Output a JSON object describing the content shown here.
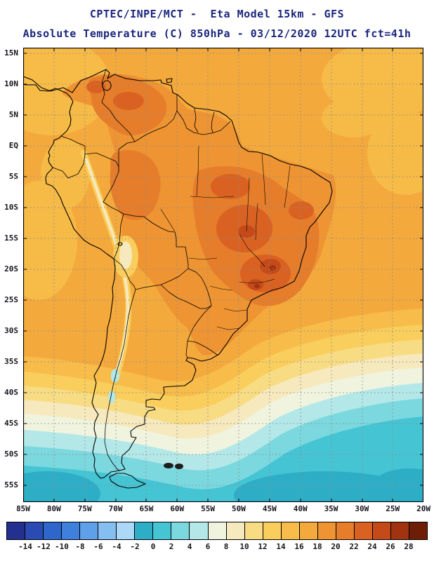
{
  "title": {
    "line1": "CPTEC/INPE/MCT -  Eta Model 15km - GFS",
    "line2": "Absolute Temperature (C) 850hPa - 03/12/2020 12UTC fct=41h"
  },
  "map": {
    "lat_labels": [
      "15N",
      "10N",
      "5N",
      "EQ",
      "5S",
      "10S",
      "15S",
      "20S",
      "25S",
      "30S",
      "35S",
      "40S",
      "45S",
      "50S",
      "55S"
    ],
    "lon_labels": [
      "85W",
      "80W",
      "75W",
      "70W",
      "65W",
      "60W",
      "55W",
      "50W",
      "45W",
      "40W",
      "35W",
      "30W",
      "25W",
      "20W"
    ]
  },
  "colorbar": {
    "tick_values": [
      "-14",
      "-12",
      "-10",
      "-8",
      "-6",
      "-4",
      "-2",
      "0",
      "2",
      "4",
      "6",
      "8",
      "10",
      "12",
      "14",
      "16",
      "18",
      "20",
      "22",
      "24",
      "26",
      "28"
    ],
    "cell_colors": [
      "#23308F",
      "#2A4BB4",
      "#2F66CC",
      "#3F80DC",
      "#60A0E8",
      "#85BEF0",
      "#ABD8F6",
      "#2EAEC6",
      "#45C4D4",
      "#7BD8DF",
      "#B4E8E8",
      "#F0F4DF",
      "#F6E9BE",
      "#F8DC84",
      "#F9CE5C",
      "#F7BC49",
      "#F4A93C",
      "#EE9433",
      "#E57D2B",
      "#D96222",
      "#C44A19",
      "#A23310",
      "#6E1E06"
    ]
  },
  "colors": {
    "title_text": "#1b267d",
    "axis_text": "#15151e",
    "grid_line": "#8c8c8c",
    "coastline": "#000000",
    "background": "#ffffff"
  }
}
